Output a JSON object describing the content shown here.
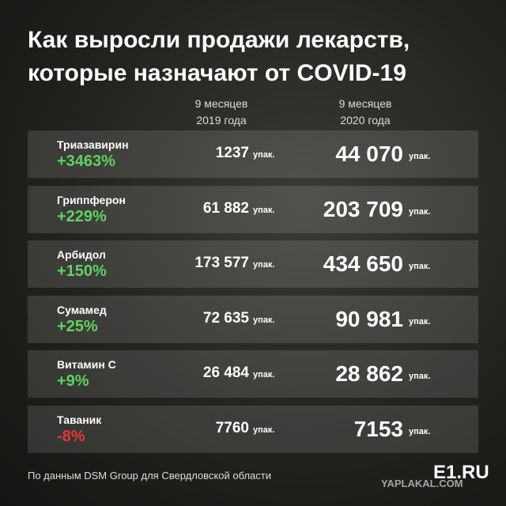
{
  "header": {
    "title_lines": [
      "Как выросли продажи лекарств,",
      "которые назначают от COVID-19"
    ]
  },
  "columns": [
    [
      "9 месяцев",
      "2019 года"
    ],
    [
      "9 месяцев",
      "2020 года"
    ]
  ],
  "unit": "упак.",
  "table": {
    "rows": [
      {
        "name": "Триазавирин",
        "change": "+3463%",
        "color": "#5fd35f",
        "v2019": "1237",
        "v2020": "44 070"
      },
      {
        "name": "Гриппферон",
        "change": "+229%",
        "color": "#5fd35f",
        "v2019": "61 882",
        "v2020": "203 709"
      },
      {
        "name": "Арбидол",
        "change": "+150%",
        "color": "#5fd35f",
        "v2019": "173 577",
        "v2020": "434 650"
      },
      {
        "name": "Сумамед",
        "change": "+25%",
        "color": "#5fd35f",
        "v2019": "72 635",
        "v2020": "90 981"
      },
      {
        "name": "Витамин С",
        "change": "+9%",
        "color": "#5fd35f",
        "v2019": "26 484",
        "v2020": "28 862"
      },
      {
        "name": "Таваник",
        "change": "-8%",
        "color": "#e53935",
        "v2019": "7760",
        "v2020": "7153"
      }
    ]
  },
  "footer": {
    "source": "По данным DSM Group для Свердловской области",
    "logo": "E1.RU",
    "watermark": "YAPLAKAL.COM"
  }
}
